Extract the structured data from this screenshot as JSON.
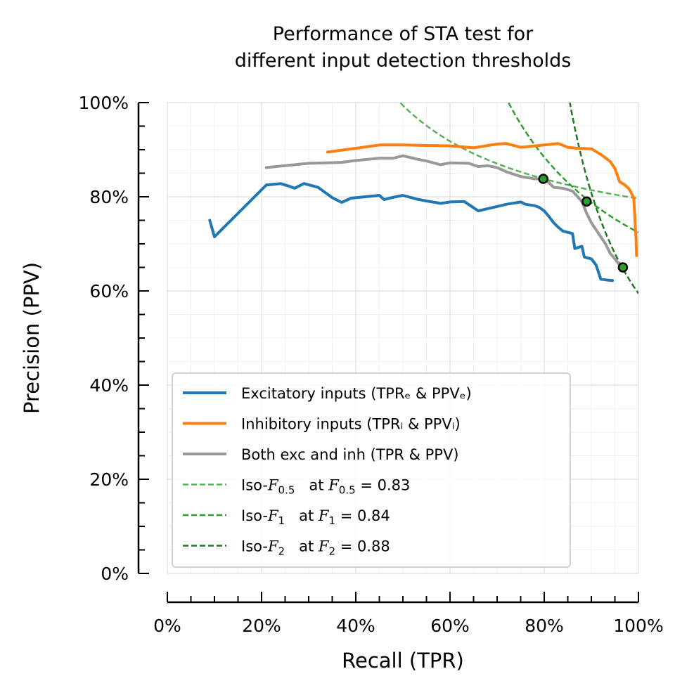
{
  "chart_data": {
    "type": "line",
    "title_lines": [
      "Performance of STA test for",
      "different input detection thresholds"
    ],
    "xlabel": "Recall (TPR)",
    "ylabel": "Precision (PPV)",
    "xlim": [
      0,
      1
    ],
    "ylim": [
      0,
      1
    ],
    "x_ticks": [
      0,
      0.2,
      0.4,
      0.6,
      0.8,
      1.0
    ],
    "x_tick_labels": [
      "0%",
      "20%",
      "40%",
      "60%",
      "80%",
      "100%"
    ],
    "y_ticks": [
      0,
      0.2,
      0.4,
      0.6,
      0.8,
      1.0
    ],
    "y_tick_labels": [
      "0%",
      "20%",
      "40%",
      "60%",
      "80%",
      "100%"
    ],
    "grid": true,
    "legend_position": "lower-left",
    "series": [
      {
        "name": "Excitatory inputs (TPRₑ & PPVₑ)",
        "color": "#1f77b4",
        "points": [
          [
            0.09,
            0.75
          ],
          [
            0.1,
            0.715
          ],
          [
            0.12,
            0.735
          ],
          [
            0.15,
            0.765
          ],
          [
            0.18,
            0.795
          ],
          [
            0.21,
            0.825
          ],
          [
            0.24,
            0.828
          ],
          [
            0.26,
            0.822
          ],
          [
            0.27,
            0.818
          ],
          [
            0.29,
            0.828
          ],
          [
            0.32,
            0.82
          ],
          [
            0.35,
            0.798
          ],
          [
            0.37,
            0.788
          ],
          [
            0.39,
            0.797
          ],
          [
            0.42,
            0.8
          ],
          [
            0.45,
            0.803
          ],
          [
            0.46,
            0.794
          ],
          [
            0.48,
            0.799
          ],
          [
            0.5,
            0.803
          ],
          [
            0.53,
            0.795
          ],
          [
            0.55,
            0.791
          ],
          [
            0.58,
            0.786
          ],
          [
            0.6,
            0.789
          ],
          [
            0.63,
            0.79
          ],
          [
            0.66,
            0.77
          ],
          [
            0.69,
            0.777
          ],
          [
            0.72,
            0.784
          ],
          [
            0.75,
            0.789
          ],
          [
            0.76,
            0.784
          ],
          [
            0.78,
            0.781
          ],
          [
            0.79,
            0.777
          ],
          [
            0.8,
            0.77
          ],
          [
            0.81,
            0.758
          ],
          [
            0.82,
            0.745
          ],
          [
            0.83,
            0.735
          ],
          [
            0.84,
            0.727
          ],
          [
            0.86,
            0.722
          ],
          [
            0.865,
            0.69
          ],
          [
            0.88,
            0.695
          ],
          [
            0.885,
            0.672
          ],
          [
            0.9,
            0.668
          ],
          [
            0.91,
            0.655
          ],
          [
            0.915,
            0.64
          ],
          [
            0.92,
            0.625
          ],
          [
            0.935,
            0.623
          ],
          [
            0.945,
            0.622
          ]
        ]
      },
      {
        "name": "Inhibitory inputs (TPRᵢ & PPVᵢ)",
        "color": "#ff7f0e",
        "points": [
          [
            0.34,
            0.895
          ],
          [
            0.4,
            0.903
          ],
          [
            0.45,
            0.91
          ],
          [
            0.5,
            0.91
          ],
          [
            0.55,
            0.909
          ],
          [
            0.6,
            0.908
          ],
          [
            0.65,
            0.904
          ],
          [
            0.7,
            0.912
          ],
          [
            0.72,
            0.913
          ],
          [
            0.75,
            0.905
          ],
          [
            0.78,
            0.908
          ],
          [
            0.8,
            0.91
          ],
          [
            0.83,
            0.913
          ],
          [
            0.85,
            0.905
          ],
          [
            0.87,
            0.903
          ],
          [
            0.9,
            0.902
          ],
          [
            0.92,
            0.89
          ],
          [
            0.94,
            0.875
          ],
          [
            0.95,
            0.86
          ],
          [
            0.96,
            0.832
          ],
          [
            0.97,
            0.826
          ],
          [
            0.98,
            0.817
          ],
          [
            0.99,
            0.798
          ],
          [
            0.995,
            0.71
          ],
          [
            0.996,
            0.675
          ]
        ]
      },
      {
        "name": "Both exc and inh (TPR & PPV)",
        "color": "#999999",
        "points": [
          [
            0.21,
            0.862
          ],
          [
            0.25,
            0.866
          ],
          [
            0.3,
            0.871
          ],
          [
            0.37,
            0.873
          ],
          [
            0.4,
            0.877
          ],
          [
            0.45,
            0.882
          ],
          [
            0.48,
            0.882
          ],
          [
            0.5,
            0.887
          ],
          [
            0.53,
            0.88
          ],
          [
            0.55,
            0.876
          ],
          [
            0.58,
            0.868
          ],
          [
            0.6,
            0.872
          ],
          [
            0.64,
            0.871
          ],
          [
            0.66,
            0.864
          ],
          [
            0.68,
            0.866
          ],
          [
            0.7,
            0.862
          ],
          [
            0.72,
            0.853
          ],
          [
            0.75,
            0.843
          ],
          [
            0.78,
            0.838
          ],
          [
            0.8,
            0.838
          ],
          [
            0.81,
            0.83
          ],
          [
            0.82,
            0.82
          ],
          [
            0.84,
            0.818
          ],
          [
            0.86,
            0.812
          ],
          [
            0.88,
            0.79
          ],
          [
            0.89,
            0.765
          ],
          [
            0.9,
            0.745
          ],
          [
            0.91,
            0.73
          ],
          [
            0.92,
            0.715
          ],
          [
            0.93,
            0.7
          ],
          [
            0.94,
            0.68
          ],
          [
            0.95,
            0.668
          ],
          [
            0.96,
            0.655
          ],
          [
            0.97,
            0.645
          ]
        ]
      },
      {
        "name": "Iso-F0.5 at F0.5=0.83",
        "legend_main": "Iso-",
        "legend_var": "F",
        "legend_sub": "0.5",
        "legend_eq": "0.83",
        "color": "#55b355",
        "dashed": true,
        "iso_beta": 0.5,
        "iso_value": 0.83
      },
      {
        "name": "Iso-F1 at F1=0.84",
        "legend_main": "Iso-",
        "legend_var": "F",
        "legend_sub": "1",
        "legend_eq": "0.84",
        "color": "#2ca02c",
        "dashed": true,
        "iso_beta": 1,
        "iso_value": 0.84
      },
      {
        "name": "Iso-F2 at F2=0.88",
        "legend_main": "Iso-",
        "legend_var": "F",
        "legend_sub": "2",
        "legend_eq": "0.88",
        "color": "#1f7a1f",
        "dashed": true,
        "iso_beta": 2,
        "iso_value": 0.88
      }
    ],
    "markers": [
      {
        "name": "best-F0.5",
        "x": 0.798,
        "y": 0.838,
        "color": "#2ca02c"
      },
      {
        "name": "best-F1",
        "x": 0.89,
        "y": 0.79,
        "color": "#2ca02c"
      },
      {
        "name": "best-F2",
        "x": 0.967,
        "y": 0.65,
        "color": "#2ca02c"
      }
    ]
  }
}
